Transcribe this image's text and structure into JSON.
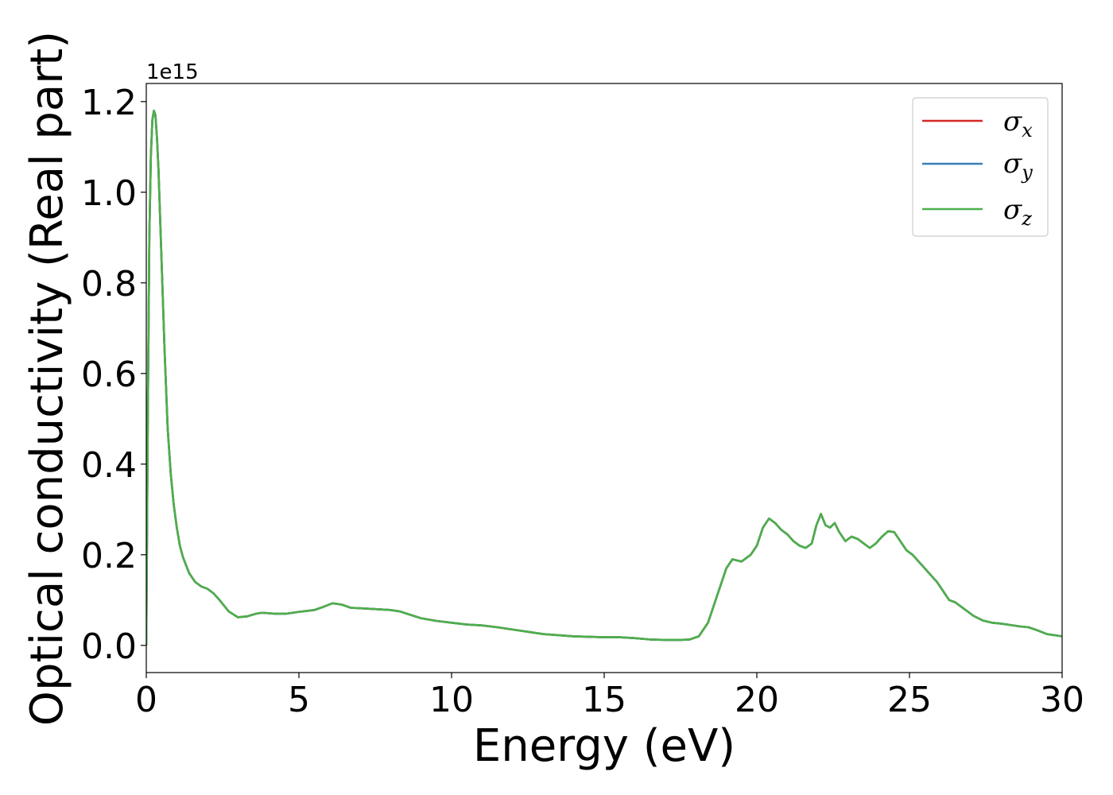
{
  "chart_data": {
    "type": "line",
    "title": "",
    "xlabel": "Energy (eV)",
    "ylabel": "Optical conductivity (Real part)",
    "y_offset_label": "1e15",
    "xlim": [
      0,
      30
    ],
    "ylim": [
      -0.06,
      1.24
    ],
    "xticks": [
      0,
      5,
      10,
      15,
      20,
      25,
      30
    ],
    "yticks": [
      0.0,
      0.2,
      0.4,
      0.6,
      0.8,
      1.0,
      1.2
    ],
    "xtick_labels": [
      "0",
      "5",
      "10",
      "15",
      "20",
      "25",
      "30"
    ],
    "ytick_labels": [
      "0.0",
      "0.2",
      "0.4",
      "0.6",
      "0.8",
      "1.0",
      "1.2"
    ],
    "grid": false,
    "legend": {
      "placement": "upper-right",
      "entries": [
        {
          "symbol": "σ",
          "sub": "x",
          "color": "#d62728"
        },
        {
          "symbol": "σ",
          "sub": "y",
          "color": "#377eb8"
        },
        {
          "symbol": "σ",
          "sub": "z",
          "color": "#4daf4a"
        }
      ]
    },
    "x": [
      0,
      0.05,
      0.1,
      0.15,
      0.2,
      0.25,
      0.3,
      0.35,
      0.4,
      0.5,
      0.6,
      0.7,
      0.8,
      0.9,
      1.0,
      1.1,
      1.2,
      1.4,
      1.6,
      1.8,
      2.0,
      2.2,
      2.4,
      2.7,
      3.0,
      3.3,
      3.6,
      3.8,
      4.2,
      4.6,
      5.0,
      5.5,
      5.8,
      6.1,
      6.4,
      6.7,
      7.0,
      7.5,
      8.0,
      8.3,
      9.0,
      9.5,
      10.0,
      10.5,
      11.0,
      11.5,
      12.0,
      12.5,
      13.0,
      14.0,
      15.0,
      15.5,
      16.0,
      16.5,
      17.0,
      17.5,
      17.8,
      18.1,
      18.4,
      18.7,
      19.0,
      19.2,
      19.5,
      19.8,
      20.0,
      20.2,
      20.4,
      20.6,
      20.8,
      21.0,
      21.2,
      21.4,
      21.6,
      21.8,
      21.95,
      22.1,
      22.25,
      22.4,
      22.55,
      22.7,
      22.9,
      23.1,
      23.3,
      23.5,
      23.7,
      23.9,
      24.1,
      24.3,
      24.5,
      24.7,
      24.9,
      25.1,
      25.3,
      25.5,
      25.7,
      25.9,
      26.1,
      26.3,
      26.5,
      26.8,
      27.1,
      27.4,
      27.7,
      28.0,
      28.3,
      28.6,
      28.9,
      29.2,
      29.5,
      30.0
    ],
    "series": [
      {
        "name": "σx",
        "color": "#d62728",
        "values": [
          0.0,
          0.5,
          0.9,
          1.08,
          1.16,
          1.18,
          1.17,
          1.12,
          1.05,
          0.85,
          0.65,
          0.48,
          0.38,
          0.31,
          0.26,
          0.22,
          0.195,
          0.16,
          0.14,
          0.13,
          0.125,
          0.115,
          0.1,
          0.075,
          0.062,
          0.064,
          0.07,
          0.072,
          0.07,
          0.07,
          0.074,
          0.078,
          0.085,
          0.093,
          0.09,
          0.083,
          0.082,
          0.08,
          0.078,
          0.075,
          0.06,
          0.054,
          0.05,
          0.046,
          0.044,
          0.04,
          0.035,
          0.03,
          0.025,
          0.02,
          0.018,
          0.018,
          0.016,
          0.013,
          0.012,
          0.012,
          0.013,
          0.02,
          0.05,
          0.11,
          0.17,
          0.19,
          0.185,
          0.2,
          0.22,
          0.26,
          0.28,
          0.27,
          0.255,
          0.245,
          0.23,
          0.22,
          0.215,
          0.225,
          0.265,
          0.29,
          0.265,
          0.26,
          0.27,
          0.25,
          0.23,
          0.24,
          0.235,
          0.225,
          0.215,
          0.225,
          0.24,
          0.252,
          0.25,
          0.23,
          0.21,
          0.2,
          0.185,
          0.17,
          0.155,
          0.14,
          0.12,
          0.1,
          0.095,
          0.08,
          0.065,
          0.055,
          0.05,
          0.048,
          0.045,
          0.042,
          0.04,
          0.033,
          0.025,
          0.02
        ]
      },
      {
        "name": "σy",
        "color": "#377eb8",
        "values": [
          0.0,
          0.5,
          0.9,
          1.08,
          1.16,
          1.18,
          1.17,
          1.12,
          1.05,
          0.85,
          0.65,
          0.48,
          0.38,
          0.31,
          0.26,
          0.22,
          0.195,
          0.16,
          0.14,
          0.13,
          0.125,
          0.115,
          0.1,
          0.075,
          0.062,
          0.064,
          0.07,
          0.072,
          0.07,
          0.07,
          0.074,
          0.078,
          0.085,
          0.093,
          0.09,
          0.083,
          0.082,
          0.08,
          0.078,
          0.075,
          0.06,
          0.054,
          0.05,
          0.046,
          0.044,
          0.04,
          0.035,
          0.03,
          0.025,
          0.02,
          0.018,
          0.018,
          0.016,
          0.013,
          0.012,
          0.012,
          0.013,
          0.02,
          0.05,
          0.11,
          0.17,
          0.19,
          0.185,
          0.2,
          0.22,
          0.26,
          0.28,
          0.27,
          0.255,
          0.245,
          0.23,
          0.22,
          0.215,
          0.225,
          0.265,
          0.29,
          0.265,
          0.26,
          0.27,
          0.25,
          0.23,
          0.24,
          0.235,
          0.225,
          0.215,
          0.225,
          0.24,
          0.252,
          0.25,
          0.23,
          0.21,
          0.2,
          0.185,
          0.17,
          0.155,
          0.14,
          0.12,
          0.1,
          0.095,
          0.08,
          0.065,
          0.055,
          0.05,
          0.048,
          0.045,
          0.042,
          0.04,
          0.033,
          0.025,
          0.02
        ]
      },
      {
        "name": "σz",
        "color": "#4daf4a",
        "values": [
          0.0,
          0.5,
          0.9,
          1.08,
          1.16,
          1.18,
          1.17,
          1.12,
          1.05,
          0.85,
          0.65,
          0.48,
          0.38,
          0.31,
          0.26,
          0.22,
          0.195,
          0.16,
          0.14,
          0.13,
          0.125,
          0.115,
          0.1,
          0.075,
          0.062,
          0.064,
          0.07,
          0.072,
          0.07,
          0.07,
          0.074,
          0.078,
          0.085,
          0.093,
          0.09,
          0.083,
          0.082,
          0.08,
          0.078,
          0.075,
          0.06,
          0.054,
          0.05,
          0.046,
          0.044,
          0.04,
          0.035,
          0.03,
          0.025,
          0.02,
          0.018,
          0.018,
          0.016,
          0.013,
          0.012,
          0.012,
          0.013,
          0.02,
          0.05,
          0.11,
          0.17,
          0.19,
          0.185,
          0.2,
          0.22,
          0.26,
          0.28,
          0.27,
          0.255,
          0.245,
          0.23,
          0.22,
          0.215,
          0.225,
          0.265,
          0.29,
          0.265,
          0.26,
          0.27,
          0.25,
          0.23,
          0.24,
          0.235,
          0.225,
          0.215,
          0.225,
          0.24,
          0.252,
          0.25,
          0.23,
          0.21,
          0.2,
          0.185,
          0.17,
          0.155,
          0.14,
          0.12,
          0.1,
          0.095,
          0.08,
          0.065,
          0.055,
          0.05,
          0.048,
          0.045,
          0.042,
          0.04,
          0.033,
          0.025,
          0.02
        ]
      }
    ]
  }
}
